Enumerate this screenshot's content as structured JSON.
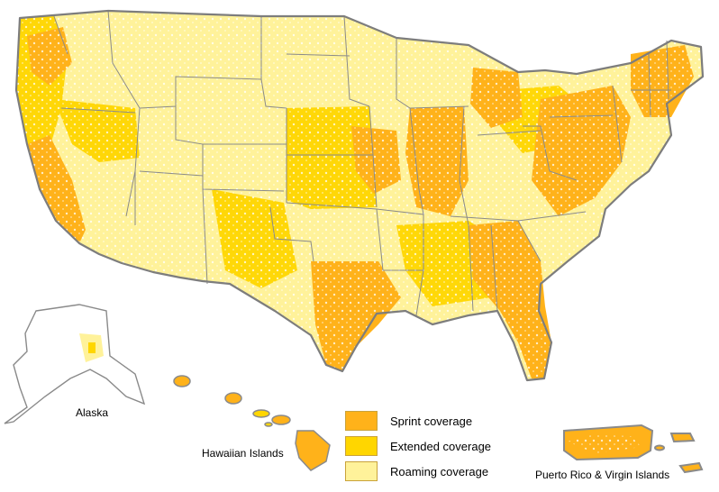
{
  "labels": {
    "alaska": "Alaska",
    "hawaii": "Hawaiian Islands",
    "puerto_rico": "Puerto Rico & Virgin Islands"
  },
  "legend": [
    {
      "label": "Sprint coverage",
      "color": "#ffb21a"
    },
    {
      "label": "Extended coverage",
      "color": "#ffd600"
    },
    {
      "label": "Roaming coverage",
      "color": "#fff29a"
    }
  ],
  "colors": {
    "sprint": "#ffb21a",
    "extended": "#ffd600",
    "roaming": "#fff29a",
    "background": "#ffffff",
    "border": "#8a8a8a"
  }
}
